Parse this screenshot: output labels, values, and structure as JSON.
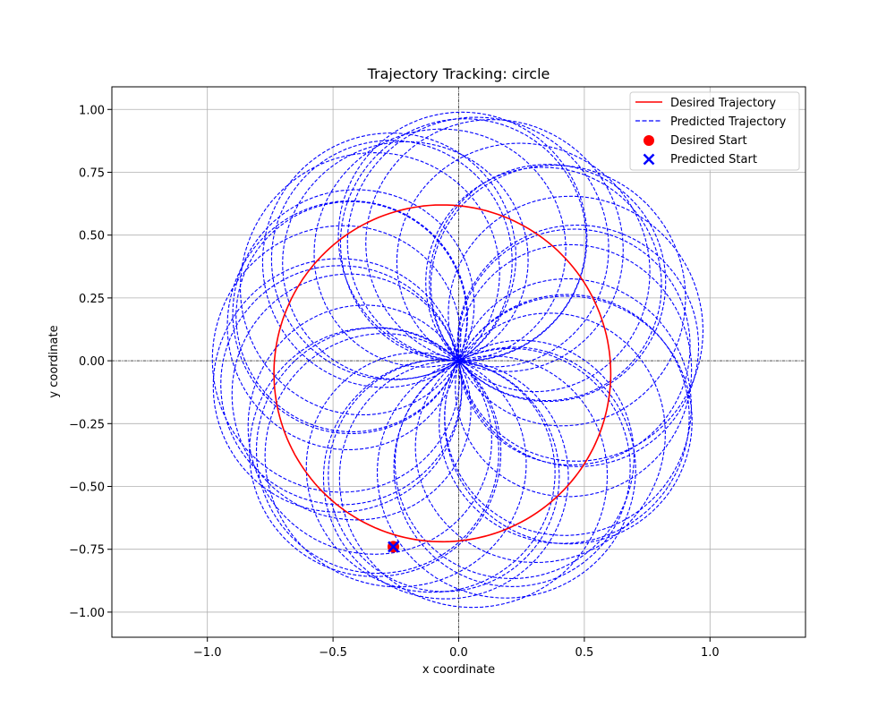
{
  "chart_data": {
    "type": "line",
    "title": "Trajectory Tracking: circle",
    "xlabel": "x coordinate",
    "ylabel": "y coordinate",
    "xlim": [
      -1.38,
      1.38
    ],
    "ylim": [
      -1.1,
      1.09
    ],
    "xticks": [
      -1.0,
      -0.5,
      0.0,
      0.5,
      1.0
    ],
    "xtick_labels": [
      "−1.0",
      "−0.5",
      "0.0",
      "0.5",
      "1.0"
    ],
    "yticks": [
      -1.0,
      -0.75,
      -0.5,
      -0.25,
      0.0,
      0.25,
      0.5,
      0.75,
      1.0
    ],
    "ytick_labels": [
      "−1.00",
      "−0.75",
      "−0.50",
      "−0.25",
      "0.00",
      "0.25",
      "0.50",
      "0.75",
      "1.00"
    ],
    "grid": true,
    "reference_lines": {
      "x": 0.0,
      "y": 0.0
    },
    "legend_position": "top-right",
    "colors": {
      "desired": "#ff0000",
      "predicted": "#0000ff",
      "grid": "#b0b0b0"
    },
    "series": [
      {
        "name": "Desired Trajectory",
        "style": "solid",
        "color": "#ff0000",
        "shape": "arc",
        "center": [
          -0.065,
          -0.05
        ],
        "radius": 0.67,
        "start_deg": -115,
        "end_deg": 359,
        "points": [
          [
            -0.26,
            -0.74
          ],
          [
            -0.43,
            -0.61
          ],
          [
            -0.58,
            -0.43
          ],
          [
            -0.68,
            -0.23
          ],
          [
            -0.72,
            0.0
          ],
          [
            -0.68,
            0.23
          ],
          [
            -0.58,
            0.42
          ],
          [
            -0.42,
            0.55
          ],
          [
            -0.23,
            0.61
          ],
          [
            -0.06,
            0.62
          ],
          [
            0.13,
            0.57
          ],
          [
            0.3,
            0.46
          ],
          [
            0.43,
            0.29
          ],
          [
            0.5,
            0.12
          ],
          [
            0.51,
            0.01
          ]
        ]
      },
      {
        "name": "Predicted Trajectory",
        "style": "dashed",
        "color": "#0000ff",
        "shape": "rose",
        "radius": 0.99,
        "petal_count": 19,
        "start": [
          -0.26,
          -0.74
        ]
      }
    ],
    "markers": [
      {
        "name": "Desired Start",
        "marker": "circle",
        "color": "#ff0000",
        "x": -0.26,
        "y": -0.74
      },
      {
        "name": "Predicted Start",
        "marker": "x",
        "color": "#0000ff",
        "x": -0.26,
        "y": -0.74
      }
    ],
    "legend": [
      {
        "label": "Desired Trajectory",
        "kind": "line-solid",
        "color": "#ff0000"
      },
      {
        "label": "Predicted Trajectory",
        "kind": "line-dashed",
        "color": "#0000ff"
      },
      {
        "label": "Desired Start",
        "kind": "dot",
        "color": "#ff0000"
      },
      {
        "label": "Predicted Start",
        "kind": "cross",
        "color": "#0000ff"
      }
    ]
  }
}
